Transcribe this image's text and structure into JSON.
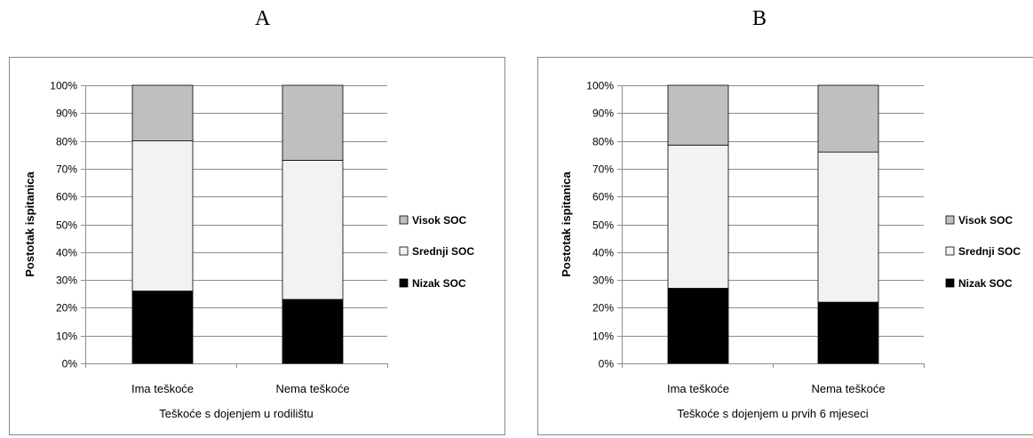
{
  "panels": {
    "a": {
      "letter": "A"
    },
    "b": {
      "letter": "B"
    }
  },
  "chart_data": [
    {
      "type": "bar",
      "stacked": true,
      "categories": [
        "Ima teškoće",
        "Nema teškoće"
      ],
      "series": [
        {
          "name": "Nizak SOC",
          "color": "#000000",
          "values": [
            26,
            23
          ]
        },
        {
          "name": "Srednji SOC",
          "color": "#f2f2f2",
          "values": [
            54,
            50
          ]
        },
        {
          "name": "Visok SOC",
          "color": "#bfbfbf",
          "values": [
            20,
            27
          ]
        }
      ],
      "xlabel": "Teškoće s dojenjem u rodilištu",
      "ylabel": "Postotak ispitanica",
      "ylim": [
        0,
        100
      ],
      "yticks": [
        "0%",
        "10%",
        "20%",
        "30%",
        "40%",
        "50%",
        "60%",
        "70%",
        "80%",
        "90%",
        "100%"
      ],
      "grid": true,
      "legend": "right"
    },
    {
      "type": "bar",
      "stacked": true,
      "categories": [
        "Ima teškoće",
        "Nema teškoće"
      ],
      "series": [
        {
          "name": "Nizak SOC",
          "color": "#000000",
          "values": [
            27,
            22
          ]
        },
        {
          "name": "Srednji SOC",
          "color": "#f2f2f2",
          "values": [
            51.5,
            54
          ]
        },
        {
          "name": "Visok SOC",
          "color": "#bfbfbf",
          "values": [
            21.5,
            24
          ]
        }
      ],
      "xlabel": "Teškoće s dojenjem u prvih 6 mjeseci",
      "ylabel": "Postotak ispitanica",
      "ylim": [
        0,
        100
      ],
      "yticks": [
        "0%",
        "10%",
        "20%",
        "30%",
        "40%",
        "50%",
        "60%",
        "70%",
        "80%",
        "90%",
        "100%"
      ],
      "grid": true,
      "legend": "right"
    }
  ]
}
